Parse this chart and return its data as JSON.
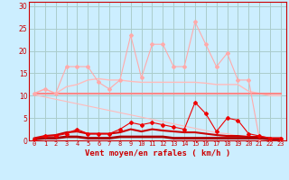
{
  "x": [
    0,
    1,
    2,
    3,
    4,
    5,
    6,
    7,
    8,
    9,
    10,
    11,
    12,
    13,
    14,
    15,
    16,
    17,
    18,
    19,
    20,
    21,
    22,
    23
  ],
  "background_color": "#cceeff",
  "grid_color": "#aacccc",
  "xlabel": "Vent moyen/en rafales ( km/h )",
  "xlabel_color": "#cc0000",
  "tick_color": "#cc0000",
  "ylim": [
    0,
    31
  ],
  "yticks": [
    0,
    5,
    10,
    15,
    20,
    25,
    30
  ],
  "line_smooth1": {
    "y": [
      10.5,
      11.5,
      10.5,
      12.0,
      12.5,
      13.5,
      13.8,
      13.5,
      13.5,
      13.2,
      13.0,
      13.0,
      13.0,
      13.0,
      13.0,
      13.0,
      12.8,
      12.5,
      12.5,
      12.5,
      11.0,
      10.5,
      10.0,
      10.0
    ],
    "color": "#ffbbbb",
    "lw": 1.0
  },
  "line_zigzag": {
    "y": [
      10.5,
      11.5,
      10.5,
      16.5,
      16.5,
      16.5,
      13.0,
      11.5,
      13.5,
      23.5,
      14.0,
      21.5,
      21.5,
      16.5,
      16.5,
      26.5,
      21.5,
      16.5,
      19.5,
      13.5,
      13.5,
      0.5,
      0.5,
      0.5
    ],
    "color": "#ffaaaa",
    "lw": 0.8,
    "marker": "D",
    "ms": 2.0
  },
  "line_flat": {
    "y": [
      10.5,
      10.5,
      10.5,
      10.5,
      10.5,
      10.5,
      10.5,
      10.5,
      10.5,
      10.5,
      10.5,
      10.5,
      10.5,
      10.5,
      10.5,
      10.5,
      10.5,
      10.5,
      10.5,
      10.5,
      10.5,
      10.5,
      10.5,
      10.5
    ],
    "color": "#ff8888",
    "lw": 1.5
  },
  "line_diag": {
    "y": [
      10.2,
      9.7,
      9.2,
      8.7,
      8.2,
      7.7,
      7.2,
      6.7,
      6.2,
      5.7,
      5.2,
      4.7,
      4.2,
      3.7,
      3.2,
      2.7,
      2.2,
      1.7,
      1.5,
      1.0,
      0.5,
      0.5,
      0.5,
      0.5
    ],
    "color": "#ffbbbb",
    "lw": 0.8
  },
  "line_red_zigzag": {
    "y": [
      0.3,
      1.0,
      1.0,
      1.5,
      2.5,
      1.5,
      1.5,
      1.5,
      2.5,
      4.0,
      3.5,
      4.0,
      3.5,
      3.0,
      2.5,
      8.5,
      6.0,
      2.0,
      5.0,
      4.5,
      1.5,
      1.0,
      0.5,
      0.5
    ],
    "color": "#ee0000",
    "lw": 0.8,
    "marker": "D",
    "ms": 2.0
  },
  "line_red_smooth": {
    "y": [
      0.5,
      1.0,
      1.2,
      1.8,
      2.0,
      1.5,
      1.5,
      1.5,
      1.8,
      2.5,
      2.0,
      2.5,
      2.2,
      2.0,
      1.8,
      1.8,
      1.5,
      1.2,
      1.0,
      1.0,
      0.8,
      0.8,
      0.5,
      0.5
    ],
    "color": "#cc0000",
    "lw": 1.5
  },
  "line_red_flat": {
    "y": [
      0.3,
      0.5,
      0.5,
      0.8,
      0.8,
      0.5,
      0.5,
      0.5,
      0.8,
      0.8,
      0.8,
      0.8,
      0.8,
      0.5,
      0.5,
      0.5,
      0.5,
      0.5,
      0.5,
      0.5,
      0.5,
      0.5,
      0.3,
      0.3
    ],
    "color": "#aa0000",
    "lw": 2.0
  }
}
